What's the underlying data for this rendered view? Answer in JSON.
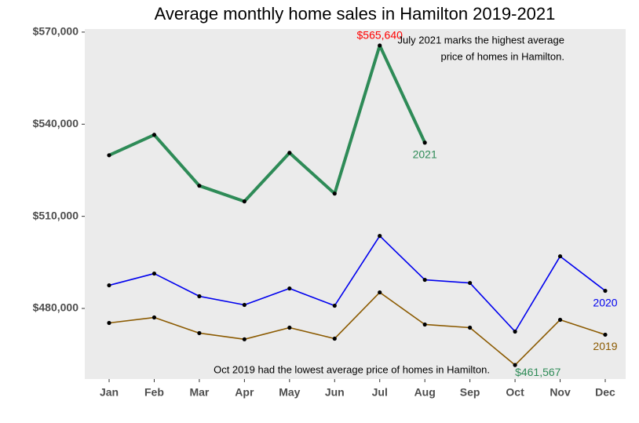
{
  "chart_data": {
    "type": "line",
    "title": "Average monthly home sales in Hamilton 2019-2021",
    "categories": [
      "Jan",
      "Feb",
      "Mar",
      "Apr",
      "May",
      "Jun",
      "Jul",
      "Aug",
      "Sep",
      "Oct",
      "Nov",
      "Dec"
    ],
    "series": [
      {
        "name": "2021",
        "color": "#2e8b57",
        "width": 4,
        "values": [
          529900,
          536550,
          519960,
          514860,
          530680,
          517400,
          565640,
          534000,
          null,
          null,
          null,
          null
        ],
        "value_labels": [
          null,
          null,
          null,
          null,
          null,
          null,
          "$565,640",
          null,
          null,
          null,
          null,
          null
        ],
        "value_label_color": "#ff0000"
      },
      {
        "name": "2020",
        "color": "#0000ee",
        "width": 1.6,
        "values": [
          487530,
          491360,
          483960,
          481150,
          486510,
          480890,
          503620,
          489320,
          488300,
          472470,
          496980,
          485740
        ]
      },
      {
        "name": "2019",
        "color": "#8b5a00",
        "width": 1.6,
        "values": [
          475280,
          477060,
          471960,
          469960,
          473740,
          470170,
          485230,
          474770,
          473740,
          461567,
          476300,
          471450
        ],
        "value_labels": [
          null,
          null,
          null,
          null,
          null,
          null,
          null,
          null,
          null,
          "$461,567",
          null,
          null
        ],
        "value_label_color": "#2e8b57"
      }
    ],
    "annotations": [
      {
        "lines": [
          "July 2021 marks the highest average",
          "price of homes in Hamilton."
        ]
      },
      {
        "lines": [
          "Oct 2019 had the lowest average price of homes in Hamilton."
        ]
      }
    ],
    "ylim": [
      457000,
      571000
    ],
    "yticks": [
      {
        "value": 480000,
        "label": "$480,000"
      },
      {
        "value": 510000,
        "label": "$510,000"
      },
      {
        "value": 540000,
        "label": "$540,000"
      },
      {
        "value": 570000,
        "label": "$570,000"
      }
    ],
    "grid": false
  }
}
